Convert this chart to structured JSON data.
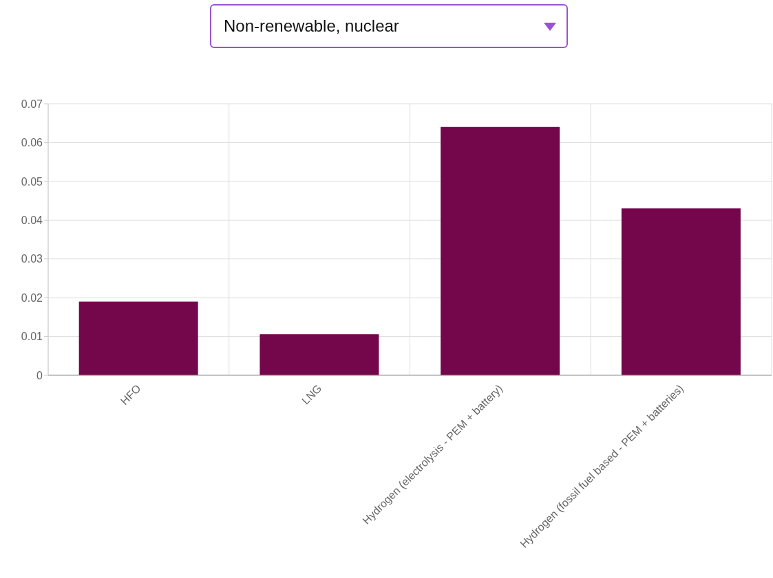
{
  "chart_data": {
    "type": "bar",
    "title": "Non-renewable, nuclear",
    "categories": [
      "HFO",
      "LNG",
      "Hydrogen (electrolysis - PEM + battery)",
      "Hydrogen (fossil fuel based - PEM + batteries)"
    ],
    "values": [
      0.019,
      0.0106,
      0.064,
      0.043
    ],
    "color": "#74064c",
    "ylim": [
      0,
      0.07
    ],
    "yticks": [
      0,
      0.01,
      0.02,
      0.03,
      0.04,
      0.05,
      0.06,
      0.07
    ],
    "grid": true,
    "legend": false
  }
}
